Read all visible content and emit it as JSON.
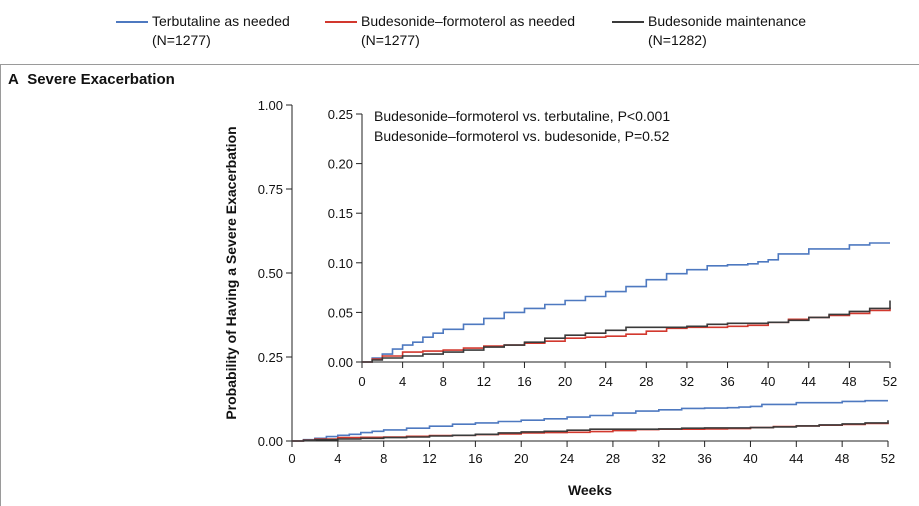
{
  "legend": {
    "items": [
      {
        "label": "Terbutaline as needed",
        "n": "(N=1277)",
        "color": "#4e79c0"
      },
      {
        "label": "Budesonide–formoterol as needed",
        "n": "(N=1277)",
        "color": "#d2382e"
      },
      {
        "label": "Budesonide maintenance",
        "n": "(N=1282)",
        "color": "#3a3a3a"
      }
    ]
  },
  "panel": {
    "letter": "A",
    "title": "Severe Exacerbation"
  },
  "chart_data": [
    {
      "type": "line",
      "role": "main",
      "xlabel": "Weeks",
      "ylabel": "Probability of Having a Severe Exacerbation",
      "xlim": [
        0,
        52
      ],
      "ylim": [
        0,
        1
      ],
      "xticks": [
        0,
        4,
        8,
        12,
        16,
        20,
        24,
        28,
        32,
        36,
        40,
        44,
        48,
        52
      ],
      "yticks": [
        "0.00",
        "0.25",
        "0.50",
        "0.75",
        "1.00"
      ],
      "series": [
        {
          "name": "Terbutaline as needed",
          "color": "#4e79c0",
          "x": [
            0,
            1,
            2,
            3,
            4,
            5,
            6,
            7,
            8,
            10,
            12,
            14,
            16,
            18,
            20,
            22,
            24,
            26,
            28,
            30,
            32,
            34,
            36,
            38,
            39,
            40,
            41,
            44,
            48,
            50,
            52
          ],
          "y": [
            0,
            0.004,
            0.008,
            0.013,
            0.017,
            0.02,
            0.025,
            0.029,
            0.033,
            0.038,
            0.044,
            0.05,
            0.054,
            0.058,
            0.062,
            0.066,
            0.071,
            0.076,
            0.083,
            0.089,
            0.093,
            0.097,
            0.098,
            0.099,
            0.101,
            0.103,
            0.109,
            0.114,
            0.118,
            0.12,
            0.12
          ]
        },
        {
          "name": "Budesonide–formoterol as needed",
          "color": "#d2382e",
          "x": [
            0,
            1,
            2,
            4,
            6,
            8,
            10,
            12,
            14,
            16,
            18,
            20,
            22,
            24,
            26,
            28,
            30,
            32,
            34,
            36,
            38,
            40,
            42,
            44,
            46,
            48,
            50,
            52
          ],
          "y": [
            0,
            0.003,
            0.006,
            0.01,
            0.011,
            0.012,
            0.014,
            0.016,
            0.017,
            0.019,
            0.021,
            0.024,
            0.025,
            0.026,
            0.028,
            0.031,
            0.034,
            0.035,
            0.035,
            0.036,
            0.037,
            0.04,
            0.043,
            0.045,
            0.047,
            0.049,
            0.052,
            0.055
          ]
        },
        {
          "name": "Budesonide maintenance",
          "color": "#3a3a3a",
          "x": [
            0,
            1,
            2,
            4,
            6,
            8,
            10,
            12,
            14,
            16,
            18,
            20,
            22,
            24,
            26,
            28,
            30,
            32,
            34,
            36,
            38,
            40,
            42,
            44,
            46,
            48,
            50,
            52
          ],
          "y": [
            0,
            0.002,
            0.004,
            0.006,
            0.008,
            0.01,
            0.012,
            0.015,
            0.017,
            0.02,
            0.024,
            0.027,
            0.029,
            0.032,
            0.035,
            0.035,
            0.035,
            0.036,
            0.038,
            0.039,
            0.039,
            0.04,
            0.042,
            0.045,
            0.048,
            0.051,
            0.054,
            0.062
          ]
        }
      ]
    },
    {
      "type": "line",
      "role": "inset",
      "xlim": [
        0,
        52
      ],
      "ylim": [
        0,
        0.25
      ],
      "xticks": [
        0,
        4,
        8,
        12,
        16,
        20,
        24,
        28,
        32,
        36,
        40,
        44,
        48,
        52
      ],
      "yticks": [
        "0.00",
        "0.05",
        "0.10",
        "0.15",
        "0.20",
        "0.25"
      ],
      "annotations": [
        "Budesonide–formoterol vs. terbutaline, P<0.001",
        "Budesonide–formoterol vs. budesonide, P=0.52"
      ]
    }
  ]
}
